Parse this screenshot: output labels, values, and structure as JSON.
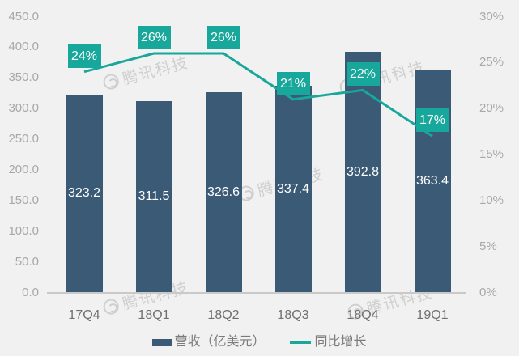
{
  "chart_data": {
    "type": "combo_bar_line",
    "categories": [
      "17Q4",
      "18Q1",
      "18Q2",
      "18Q3",
      "18Q4",
      "19Q1"
    ],
    "series": [
      {
        "name": "营收（亿美元）",
        "type": "bar",
        "axis": "left",
        "values": [
          323.2,
          311.5,
          326.6,
          337.4,
          392.8,
          363.4
        ],
        "data_labels": [
          "323.2",
          "311.5",
          "326.6",
          "337.4",
          "392.8",
          "363.4"
        ],
        "color": "#3b5a76"
      },
      {
        "name": "同比增长",
        "type": "line",
        "axis": "right",
        "values": [
          24,
          26,
          26,
          21,
          22,
          17
        ],
        "data_labels": [
          "24%",
          "26%",
          "26%",
          "21%",
          "22%",
          "17%"
        ],
        "color": "#18a79b"
      }
    ],
    "left_axis": {
      "range": [
        0,
        450
      ],
      "tick_step": 50,
      "ticks": [
        "450.0",
        "400.0",
        "350.0",
        "300.0",
        "250.0",
        "200.0",
        "150.0",
        "100.0",
        "50.0",
        "0.0"
      ]
    },
    "right_axis": {
      "range": [
        0,
        30
      ],
      "tick_step": 5,
      "ticks": [
        "30%",
        "25%",
        "20%",
        "15%",
        "10%",
        "5%",
        "0%"
      ]
    },
    "grid": false,
    "legend_position": "bottom"
  },
  "legend": {
    "items": [
      {
        "label": "营收（亿美元）",
        "marker": "bar"
      },
      {
        "label": "同比增长",
        "marker": "line"
      }
    ]
  },
  "watermark": {
    "text": "腾讯科技"
  },
  "colors": {
    "background": "#f1f1f1",
    "bar": "#3b5a76",
    "line": "#18a79b",
    "axis_text": "#a8a8a8",
    "x_axis_text": "#6f6f6f",
    "legend_text": "#7b7b7b",
    "axis_line": "#c9c9c9",
    "data_label_text": "#ffffff",
    "callout_bg": "#18a79b",
    "callout_text": "#ffffff"
  }
}
